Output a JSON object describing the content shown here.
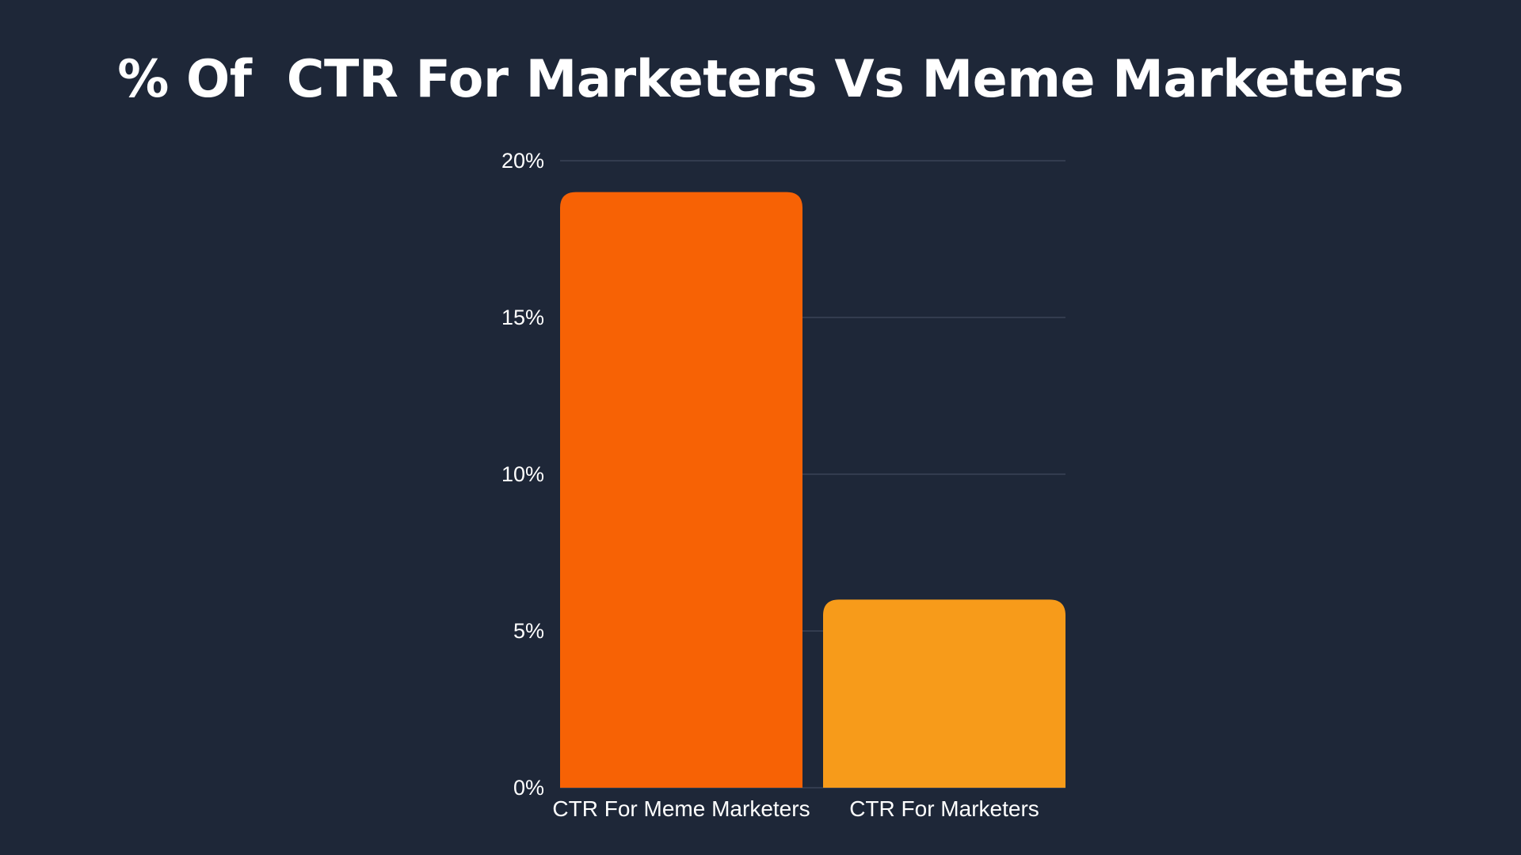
{
  "chart_data": {
    "type": "bar",
    "title": "% Of  CTR For Marketers Vs Meme Marketers",
    "xlabel": "",
    "ylabel": "",
    "categories": [
      "CTR For Meme Marketers",
      "CTR For Marketers"
    ],
    "values": [
      19,
      6
    ],
    "unit": "%",
    "yticks": [
      "0%",
      "5%",
      "10%",
      "15%",
      "20%"
    ],
    "ylim": [
      0,
      20
    ],
    "grid": true,
    "legend": "none",
    "bar_colors": [
      "#f76205",
      "#f79b1a"
    ],
    "background": "#1e2738",
    "grid_color": "#3a4457"
  }
}
